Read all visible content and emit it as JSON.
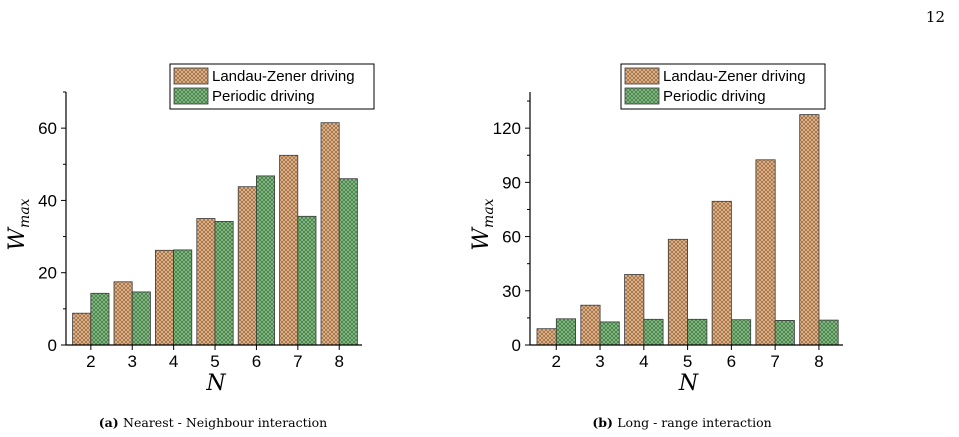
{
  "page": {
    "number": "12"
  },
  "chart_data": [
    {
      "type": "bar",
      "caption_label": "(a)",
      "caption_text": "Nearest - Neighbour interaction",
      "xlabel": "N",
      "ylabel_main": "W",
      "ylabel_sub": "max",
      "categories": [
        "2",
        "3",
        "4",
        "5",
        "6",
        "7",
        "8"
      ],
      "ylim": [
        0,
        70
      ],
      "yticks": [
        0,
        20,
        40,
        60
      ],
      "legend_position": "top-right",
      "series": [
        {
          "name": "Landau-Zener driving",
          "color": "#d9a679",
          "values": [
            8.8,
            17.5,
            26.2,
            35.0,
            43.8,
            52.5,
            61.5
          ]
        },
        {
          "name": "Periodic driving",
          "color": "#7fb27f",
          "values": [
            14.3,
            14.7,
            26.3,
            34.2,
            46.8,
            35.6,
            46.0
          ]
        }
      ]
    },
    {
      "type": "bar",
      "caption_label": "(b)",
      "caption_text": "Long - range interaction",
      "xlabel": "N",
      "ylabel_main": "W",
      "ylabel_sub": "max",
      "categories": [
        "2",
        "3",
        "4",
        "5",
        "6",
        "7",
        "8"
      ],
      "ylim": [
        0,
        140
      ],
      "yticks": [
        0,
        30,
        60,
        90,
        120
      ],
      "legend_position": "top-right",
      "series": [
        {
          "name": "Landau-Zener driving",
          "color": "#d9a679",
          "values": [
            9.0,
            22.0,
            39.0,
            58.5,
            79.5,
            102.5,
            127.5
          ]
        },
        {
          "name": "Periodic driving",
          "color": "#7fb27f",
          "values": [
            14.5,
            12.8,
            14.2,
            14.2,
            14.0,
            13.6,
            13.8
          ]
        }
      ]
    }
  ]
}
